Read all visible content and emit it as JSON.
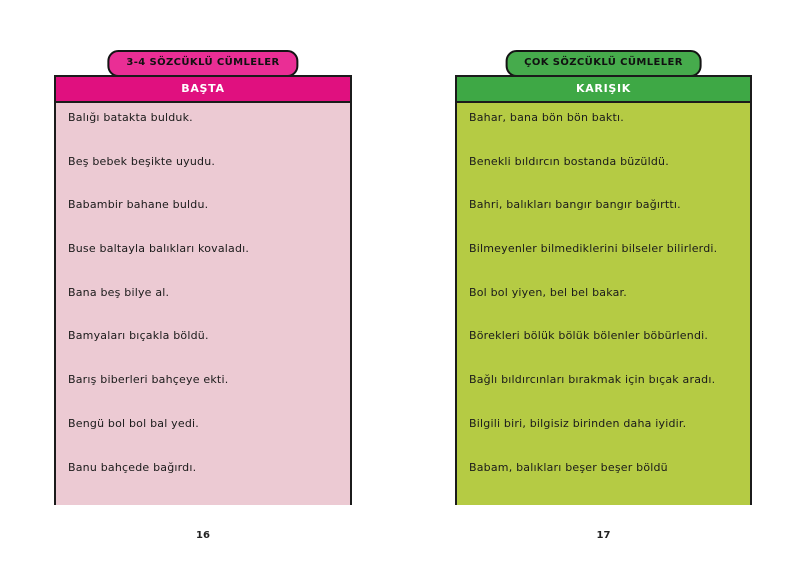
{
  "panels": [
    {
      "badge": "3-4 SÖZCÜKLÜ CÜMLELER",
      "header": "BAŞTA",
      "sentences": [
        "Balığı batakta bulduk.",
        "Beş bebek beşikte uyudu.",
        "Babambir bahane buldu.",
        "Buse baltayla balıkları kovaladı.",
        "Bana beş bilye al.",
        "Bamyaları bıçakla böldü.",
        "Barış biberleri bahçeye ekti.",
        "Bengü bol bol bal yedi.",
        "Banu bahçede bağırdı."
      ],
      "page_number": "16"
    },
    {
      "badge": "ÇOK SÖZCÜKLÜ CÜMLELER",
      "header": "KARIŞIK",
      "sentences": [
        "Bahar, bana bön bön baktı.",
        "Benekli bıldırcın bostanda büzüldü.",
        "Bahri, balıkları bangır bangır bağırttı.",
        "Bilmeyenler bilmediklerini bilseler bilirlerdi.",
        "Bol bol yiyen, bel bel bakar.",
        "Börekleri bölük bölük bölenler böbürlendi.",
        "Bağlı bıldırcınları bırakmak için bıçak aradı.",
        "Bilgili biri, bilgisiz birinden daha iyidir.",
        "Babam, balıkları beşer beşer böldü"
      ],
      "page_number": "17"
    }
  ],
  "colors": {
    "left_badge_bg": "#EA2E95",
    "left_header_bg": "#E0107F",
    "left_body_bg": "#ECCAD3",
    "right_badge_bg": "#46AB4C",
    "right_header_bg": "#3EA845",
    "right_body_bg": "#B5CB44",
    "panel_border": "#1B1B1B",
    "body_text": "#1A1A1A",
    "header_text": "#FFFFFF"
  }
}
